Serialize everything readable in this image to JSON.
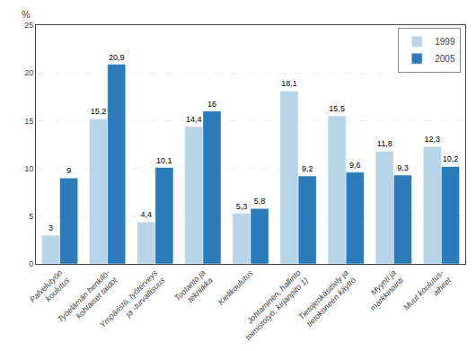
{
  "chart_data": {
    "type": "bar",
    "categories": [
      "Palvelutyön\nkoulutus",
      "Työelämän henkilö-\nkohtaiset taidot",
      "Ympäristö, työterveys\nja -turvallisuus",
      "Tuotanto ja\ntekniikka",
      "Kielikoulutus",
      "Johtaminen, hallinto\ntoimistotyö, kirjanpito 1)",
      "Tietojenkäsittely ja\ntietokoneen käyttö",
      "Myynti ja\nmarkkinointi",
      "Muut koulutus-\naiheet"
    ],
    "series": [
      {
        "name": "1999",
        "color": "#b8d4e8",
        "values": [
          3.0,
          15.2,
          4.4,
          14.4,
          5.3,
          18.1,
          15.5,
          11.8,
          12.3
        ],
        "value_labels": [
          "3",
          "15,2",
          "4,4",
          "14,4",
          "5,3",
          "18,1",
          "15,5",
          "11,8",
          "12,3"
        ]
      },
      {
        "name": "2005",
        "color": "#2b7bba",
        "values": [
          9.0,
          20.9,
          10.1,
          16.0,
          5.8,
          9.2,
          9.6,
          9.3,
          10.2
        ],
        "value_labels": [
          "9",
          "20,9",
          "10,1",
          "16",
          "5,8",
          "9,2",
          "9,6",
          "9,3",
          "10,2"
        ]
      }
    ],
    "ylabel": "%",
    "ylim": [
      0,
      25
    ],
    "yticks": [
      0,
      5,
      10,
      15,
      20,
      25
    ],
    "grid": true,
    "legend": "upper right",
    "data_labels": true
  }
}
